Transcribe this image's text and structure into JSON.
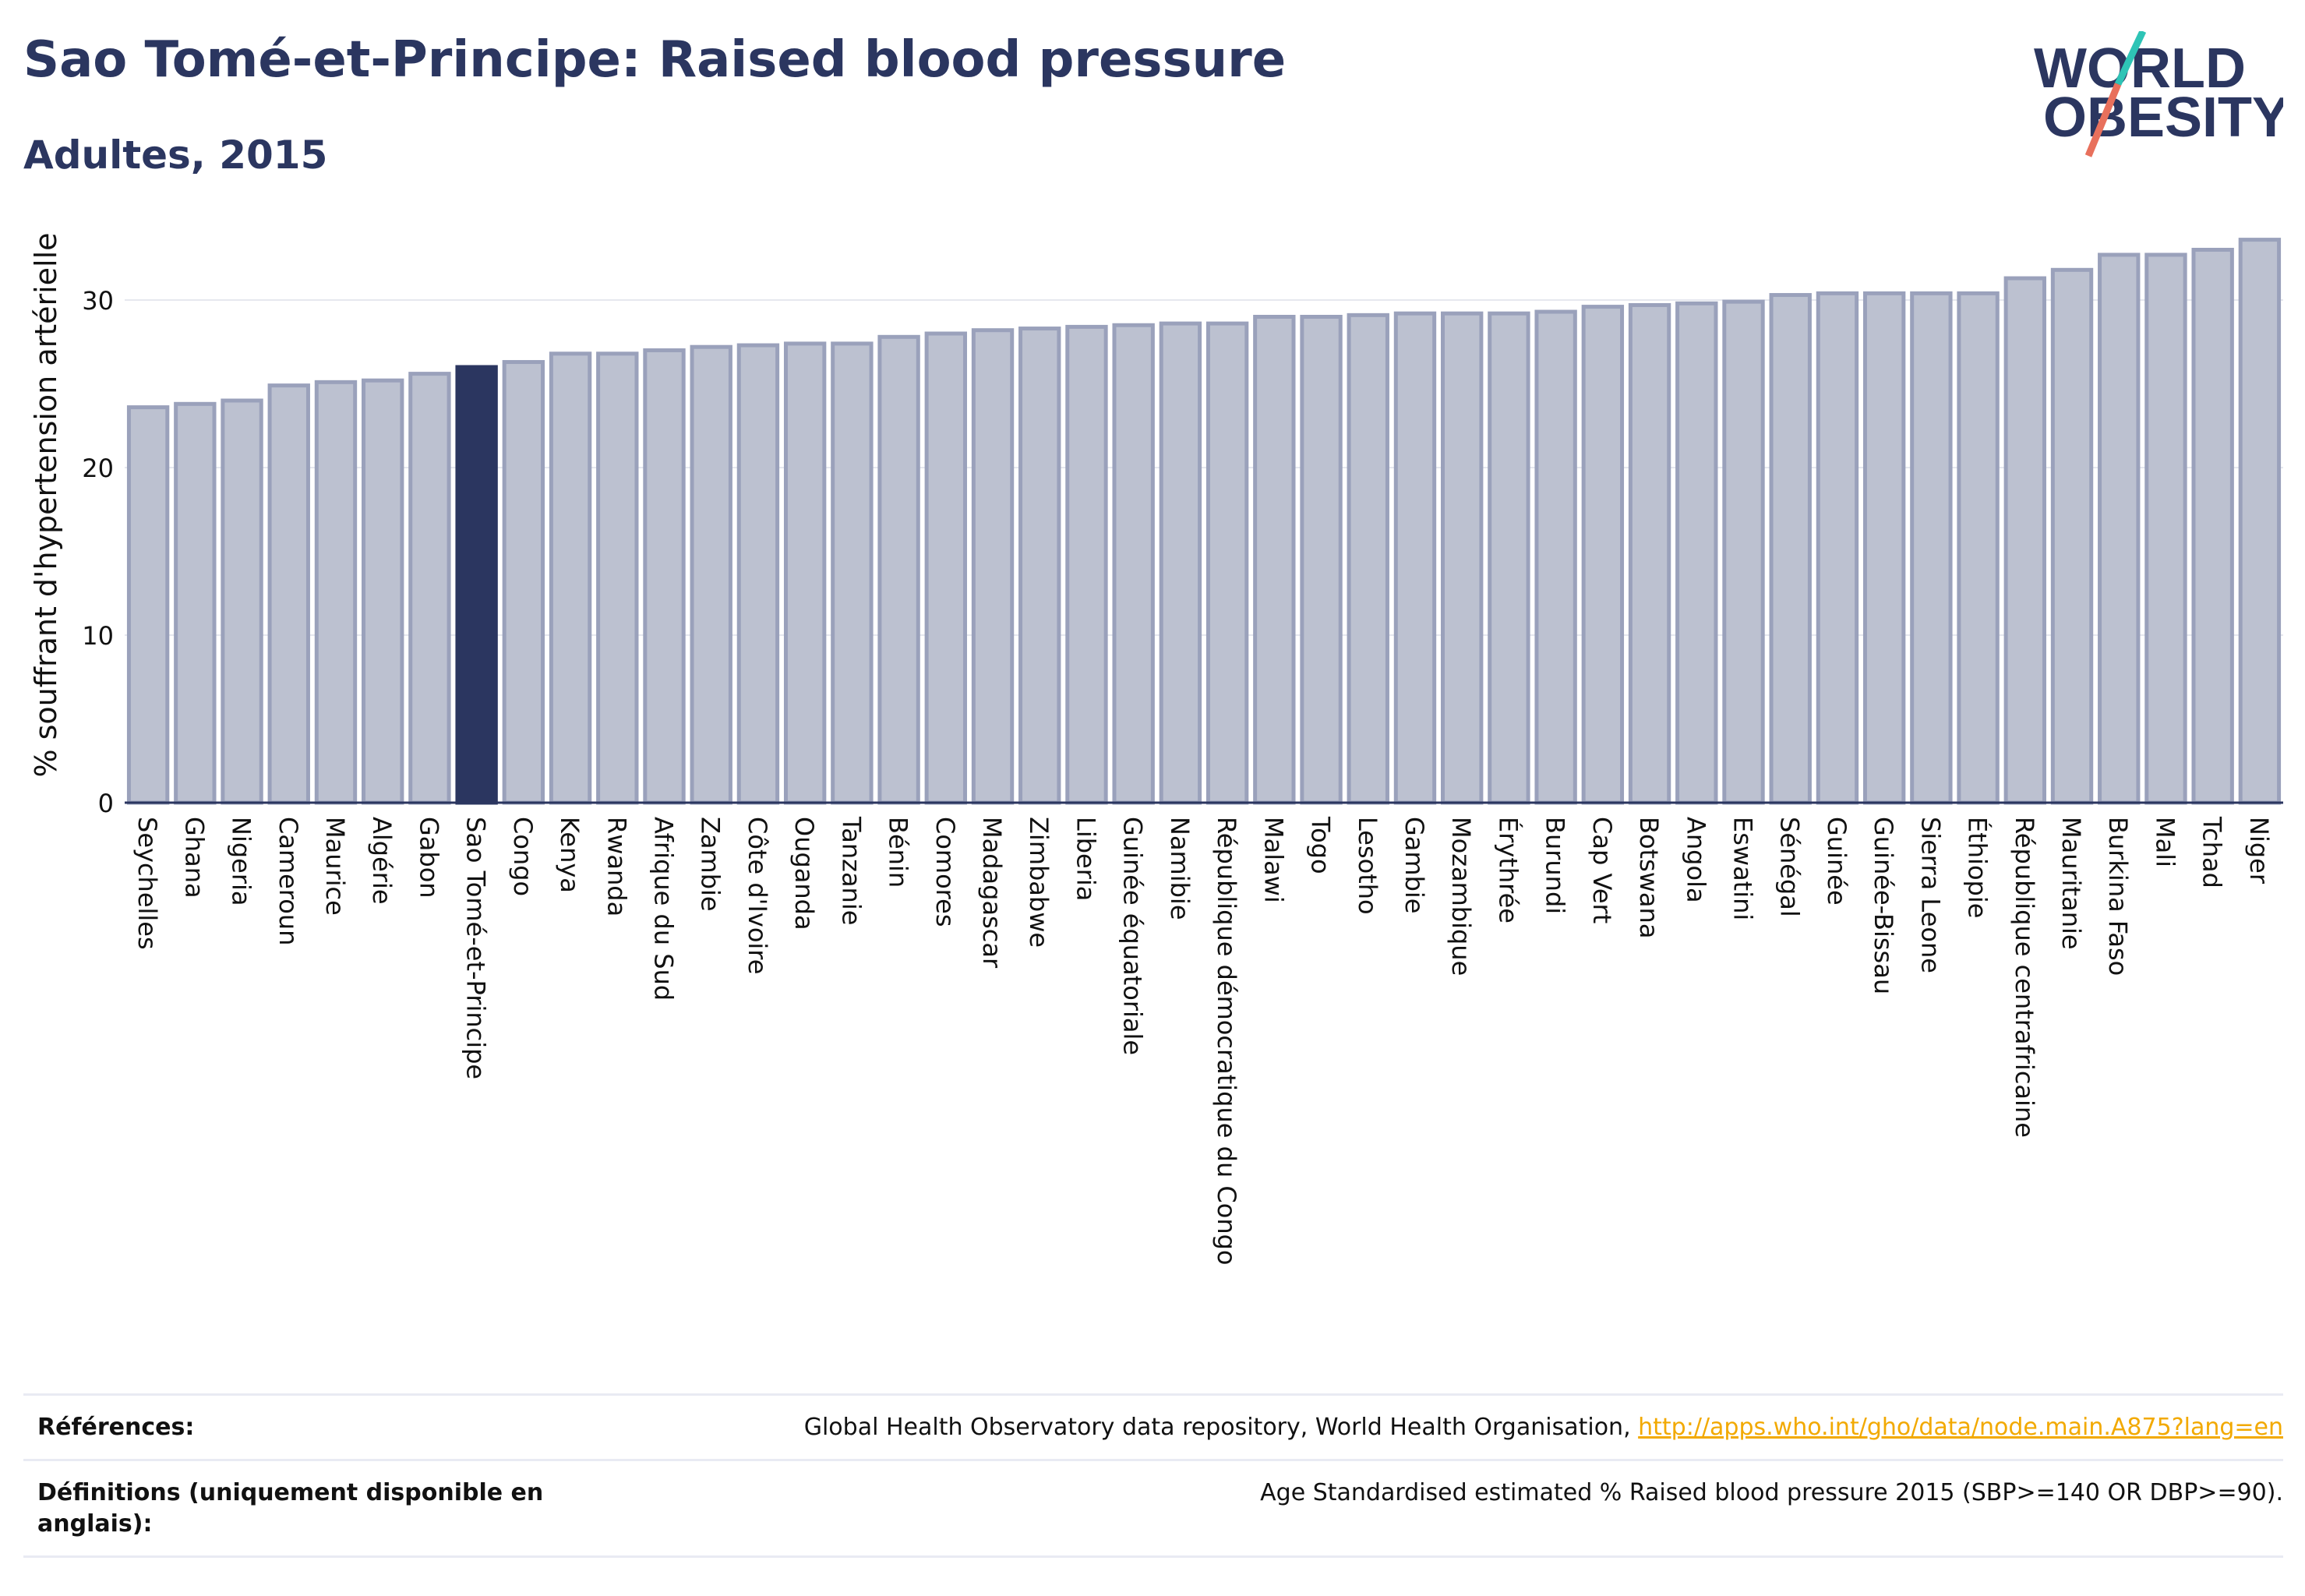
{
  "header": {
    "title": "Sao Tomé-et-Principe: Raised blood pressure",
    "subtitle": "Adultes, 2015"
  },
  "logo": {
    "line1": "WORLD",
    "line2": "OBESITY"
  },
  "colors": {
    "highlight": "#2b3660",
    "bar": "#bcc1d0",
    "bar_border": "#9aa1bb",
    "accent_teal": "#2ec4b6",
    "accent_red": "#e8705c",
    "link": "#f2a900"
  },
  "chart_data": {
    "type": "bar",
    "ylabel": "% souffrant d'hypertension artérielle",
    "ylim": [
      0,
      35
    ],
    "yticks": [
      0,
      10,
      20,
      30
    ],
    "grid": true,
    "highlight": "Sao Tomé-et-Principe",
    "categories": [
      "Seychelles",
      "Ghana",
      "Nigeria",
      "Cameroun",
      "Maurice",
      "Algérie",
      "Gabon",
      "Sao Tomé-et-Principe",
      "Congo",
      "Kenya",
      "Rwanda",
      "Afrique du Sud",
      "Zambie",
      "Côte d'Ivoire",
      "Ouganda",
      "Tanzanie",
      "Bénin",
      "Comores",
      "Madagascar",
      "Zimbabwe",
      "Liberia",
      "Guinée équatoriale",
      "Namibie",
      "République démocratique du Congo",
      "Malawi",
      "Togo",
      "Lesotho",
      "Gambie",
      "Mozambique",
      "Érythrée",
      "Burundi",
      "Cap Vert",
      "Botswana",
      "Angola",
      "Eswatini",
      "Sénégal",
      "Guinée",
      "Guinée-Bissau",
      "Sierra Leone",
      "Éthiopie",
      "République centrafricaine",
      "Mauritanie",
      "Burkina Faso",
      "Mali",
      "Tchad",
      "Niger"
    ],
    "values": [
      23.6,
      23.8,
      24.0,
      24.9,
      25.1,
      25.2,
      25.6,
      26.0,
      26.3,
      26.8,
      26.8,
      27.0,
      27.2,
      27.3,
      27.4,
      27.4,
      27.8,
      28.0,
      28.2,
      28.3,
      28.4,
      28.5,
      28.6,
      28.6,
      29.0,
      29.0,
      29.1,
      29.2,
      29.2,
      29.2,
      29.3,
      29.6,
      29.7,
      29.8,
      29.9,
      30.3,
      30.4,
      30.4,
      30.4,
      30.4,
      31.3,
      31.8,
      32.7,
      32.7,
      33.0,
      33.6
    ]
  },
  "footer": {
    "references_label": "Références:",
    "references_text": "Global Health Observatory data repository, World Health Organisation, ",
    "references_link": "http://apps.who.int/gho/data/node.main.A875?lang=en",
    "definitions_label_1": "Définitions (uniquement disponible en",
    "definitions_label_2": "anglais):",
    "definitions_text": "Age Standardised estimated % Raised blood pressure 2015 (SBP>=140 OR DBP>=90)."
  }
}
